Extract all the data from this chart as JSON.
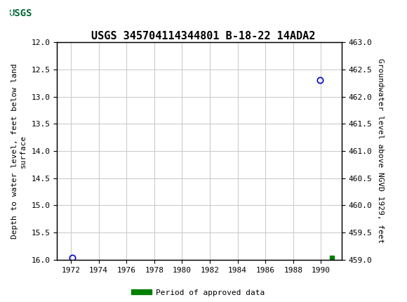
{
  "title": "USGS 345704114344801 B-18-22 14ADA2",
  "left_ylabel": "Depth to water level, feet below land\nsurface",
  "right_ylabel": "Groundwater level above NGVD 1929, feet",
  "xlim": [
    1971,
    1991.5
  ],
  "xticks": [
    1972,
    1974,
    1976,
    1978,
    1980,
    1982,
    1984,
    1986,
    1988,
    1990
  ],
  "ylim_left": [
    16.0,
    12.0
  ],
  "yticks_left": [
    12.0,
    12.5,
    13.0,
    13.5,
    14.0,
    14.5,
    15.0,
    15.5,
    16.0
  ],
  "ylim_right": [
    459.0,
    463.0
  ],
  "yticks_right": [
    459.0,
    459.5,
    460.0,
    460.5,
    461.0,
    461.5,
    462.0,
    462.5,
    463.0
  ],
  "data_points": [
    {
      "x": 1972.1,
      "y_left": 15.97,
      "type": "circle_open",
      "color": "#0000cc"
    },
    {
      "x": 1989.9,
      "y_left": 12.7,
      "type": "circle_open",
      "color": "#0000cc"
    },
    {
      "x": 1990.8,
      "y_left": 15.97,
      "type": "square_filled",
      "color": "#008000"
    }
  ],
  "header_bg_color": "#006633",
  "header_text_color": "#ffffff",
  "background_color": "#ffffff",
  "grid_color": "#cccccc",
  "legend_label": "Period of approved data",
  "legend_color": "#008000"
}
